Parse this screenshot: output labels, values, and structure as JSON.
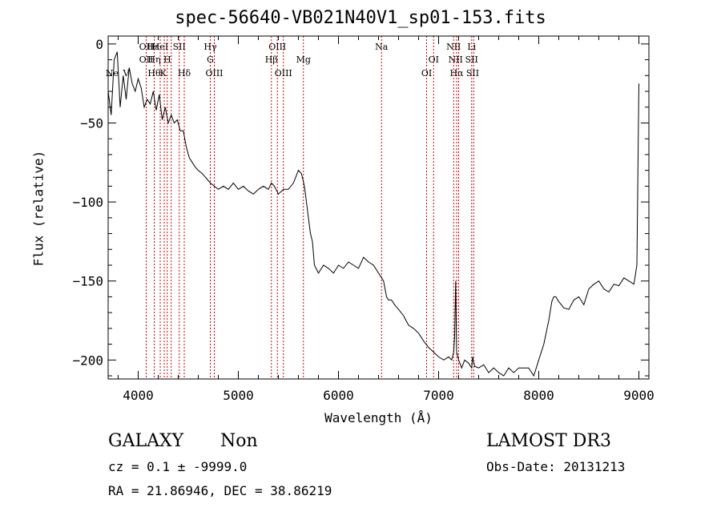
{
  "chart_data": {
    "type": "line",
    "title": "spec-56640-VB021N40V1_sp01-153.fits",
    "xlabel": "Wavelength (Å)",
    "ylabel": "Flux (relative)",
    "xlim": [
      3700,
      9100
    ],
    "ylim": [
      -212,
      5
    ],
    "xticks": [
      4000,
      5000,
      6000,
      7000,
      8000,
      9000
    ],
    "yticks": [
      0,
      -50,
      -100,
      -150,
      -200
    ],
    "grid": false,
    "line_color": "#000000",
    "marker_color": "#cc0000",
    "series": [
      {
        "x": [
          3700,
          3730,
          3760,
          3790,
          3820,
          3850,
          3880,
          3910,
          3940,
          3970,
          4000,
          4030,
          4060,
          4090,
          4120,
          4150,
          4180,
          4210,
          4240,
          4270,
          4300,
          4330,
          4360,
          4390,
          4420,
          4450,
          4480,
          4510,
          4540,
          4570,
          4600,
          4640,
          4680,
          4720,
          4760,
          4800,
          4850,
          4900,
          4950,
          5000,
          5050,
          5100,
          5150,
          5200,
          5250,
          5300,
          5330,
          5360,
          5400,
          5450,
          5500,
          5550,
          5600,
          5630,
          5660,
          5700,
          5720,
          5740,
          5760,
          5800,
          5850,
          5900,
          5950,
          6000,
          6050,
          6100,
          6150,
          6200,
          6250,
          6300,
          6350,
          6400,
          6450,
          6480,
          6500,
          6530,
          6560,
          6600,
          6650,
          6700,
          6750,
          6800,
          6850,
          6900,
          6950,
          7000,
          7050,
          7100,
          7130,
          7150,
          7160,
          7170,
          7180,
          7200,
          7230,
          7260,
          7300,
          7330,
          7340,
          7360,
          7400,
          7450,
          7500,
          7550,
          7600,
          7650,
          7700,
          7750,
          7800,
          7850,
          7900,
          7950,
          8000,
          8050,
          8100,
          8130,
          8150,
          8170,
          8200,
          8250,
          8300,
          8350,
          8400,
          8450,
          8500,
          8550,
          8600,
          8650,
          8700,
          8750,
          8800,
          8850,
          8900,
          8950,
          8980,
          8990,
          9000
        ],
        "values": [
          -30,
          -45,
          -10,
          -5,
          -40,
          -20,
          -35,
          -15,
          -25,
          -30,
          -22,
          -28,
          -40,
          -35,
          -38,
          -30,
          -42,
          -32,
          -48,
          -40,
          -50,
          -45,
          -50,
          -48,
          -55,
          -55,
          -65,
          -72,
          -75,
          -78,
          -80,
          -82,
          -85,
          -88,
          -90,
          -92,
          -90,
          -92,
          -88,
          -92,
          -90,
          -93,
          -95,
          -92,
          -90,
          -92,
          -88,
          -90,
          -95,
          -92,
          -92,
          -88,
          -80,
          -82,
          -90,
          -110,
          -120,
          -125,
          -140,
          -145,
          -140,
          -142,
          -145,
          -140,
          -142,
          -138,
          -140,
          -142,
          -135,
          -138,
          -140,
          -145,
          -150,
          -160,
          -162,
          -162,
          -165,
          -168,
          -172,
          -178,
          -180,
          -183,
          -188,
          -192,
          -195,
          -198,
          -200,
          -198,
          -200,
          -195,
          -185,
          -150,
          -195,
          -200,
          -205,
          -200,
          -202,
          -205,
          -198,
          -204,
          -205,
          -203,
          -208,
          -205,
          -208,
          -210,
          -205,
          -208,
          -205,
          -205,
          -205,
          -210,
          -200,
          -190,
          -175,
          -163,
          -160,
          -160,
          -163,
          -167,
          -168,
          -162,
          -160,
          -165,
          -155,
          -152,
          -150,
          -155,
          -157,
          -152,
          -153,
          -148,
          -150,
          -152,
          -140,
          -80,
          -25
        ]
      }
    ],
    "lines_top": [
      {
        "name": "OII",
        "x": 4080,
        "row": 0
      },
      {
        "name": "Hε",
        "x": 4150,
        "row": 0
      },
      {
        "name": "HeI",
        "x": 4220,
        "row": 0
      },
      {
        "name": "SII",
        "x": 4410,
        "row": 0
      },
      {
        "name": "Hγ",
        "x": 4720,
        "row": 0
      },
      {
        "name": "OIII",
        "x": 5390,
        "row": 0
      },
      {
        "name": "Na",
        "x": 6430,
        "row": 0
      },
      {
        "name": "NII",
        "x": 7150,
        "row": 0
      },
      {
        "name": "Li",
        "x": 7330,
        "row": 0
      },
      {
        "name": "OII",
        "x": 4080,
        "row": 1
      },
      {
        "name": "Hη",
        "x": 4160,
        "row": 1
      },
      {
        "name": "H",
        "x": 4290,
        "row": 1
      },
      {
        "name": "G",
        "x": 4720,
        "row": 1
      },
      {
        "name": "Hβ",
        "x": 5330,
        "row": 1
      },
      {
        "name": "Mg",
        "x": 5650,
        "row": 1
      },
      {
        "name": "OI",
        "x": 6950,
        "row": 1
      },
      {
        "name": "NII",
        "x": 7170,
        "row": 1
      },
      {
        "name": "SII",
        "x": 7330,
        "row": 1
      },
      {
        "name": "Hθ",
        "x": 4160,
        "row": 2
      },
      {
        "name": "K",
        "x": 4250,
        "row": 2
      },
      {
        "name": "Hδ",
        "x": 4460,
        "row": 2
      },
      {
        "name": "OIII",
        "x": 4760,
        "row": 2
      },
      {
        "name": "OIII",
        "x": 5450,
        "row": 2
      },
      {
        "name": "OI",
        "x": 6880,
        "row": 2
      },
      {
        "name": "Hα",
        "x": 7180,
        "row": 2
      },
      {
        "name": "SII",
        "x": 7340,
        "row": 2
      }
    ],
    "lines_left": [
      {
        "name": "Ne",
        "x": 3740
      },
      {
        "name": "V",
        "x": 3880
      }
    ],
    "marker_lines_x": [
      4080,
      4160,
      4220,
      4260,
      4290,
      4330,
      4410,
      4460,
      4720,
      4760,
      5330,
      5390,
      5450,
      5650,
      6430,
      6880,
      6950,
      7150,
      7180,
      7200,
      7330,
      7350
    ]
  },
  "info": {
    "class": "GALAXY",
    "subclass": "Non",
    "survey": "LAMOST DR3",
    "cz": "cz = 0.1 ± -9999.0",
    "obs_date": "Obs-Date: 20131213",
    "radec": "RA =  21.86946, DEC =  38.86219"
  }
}
